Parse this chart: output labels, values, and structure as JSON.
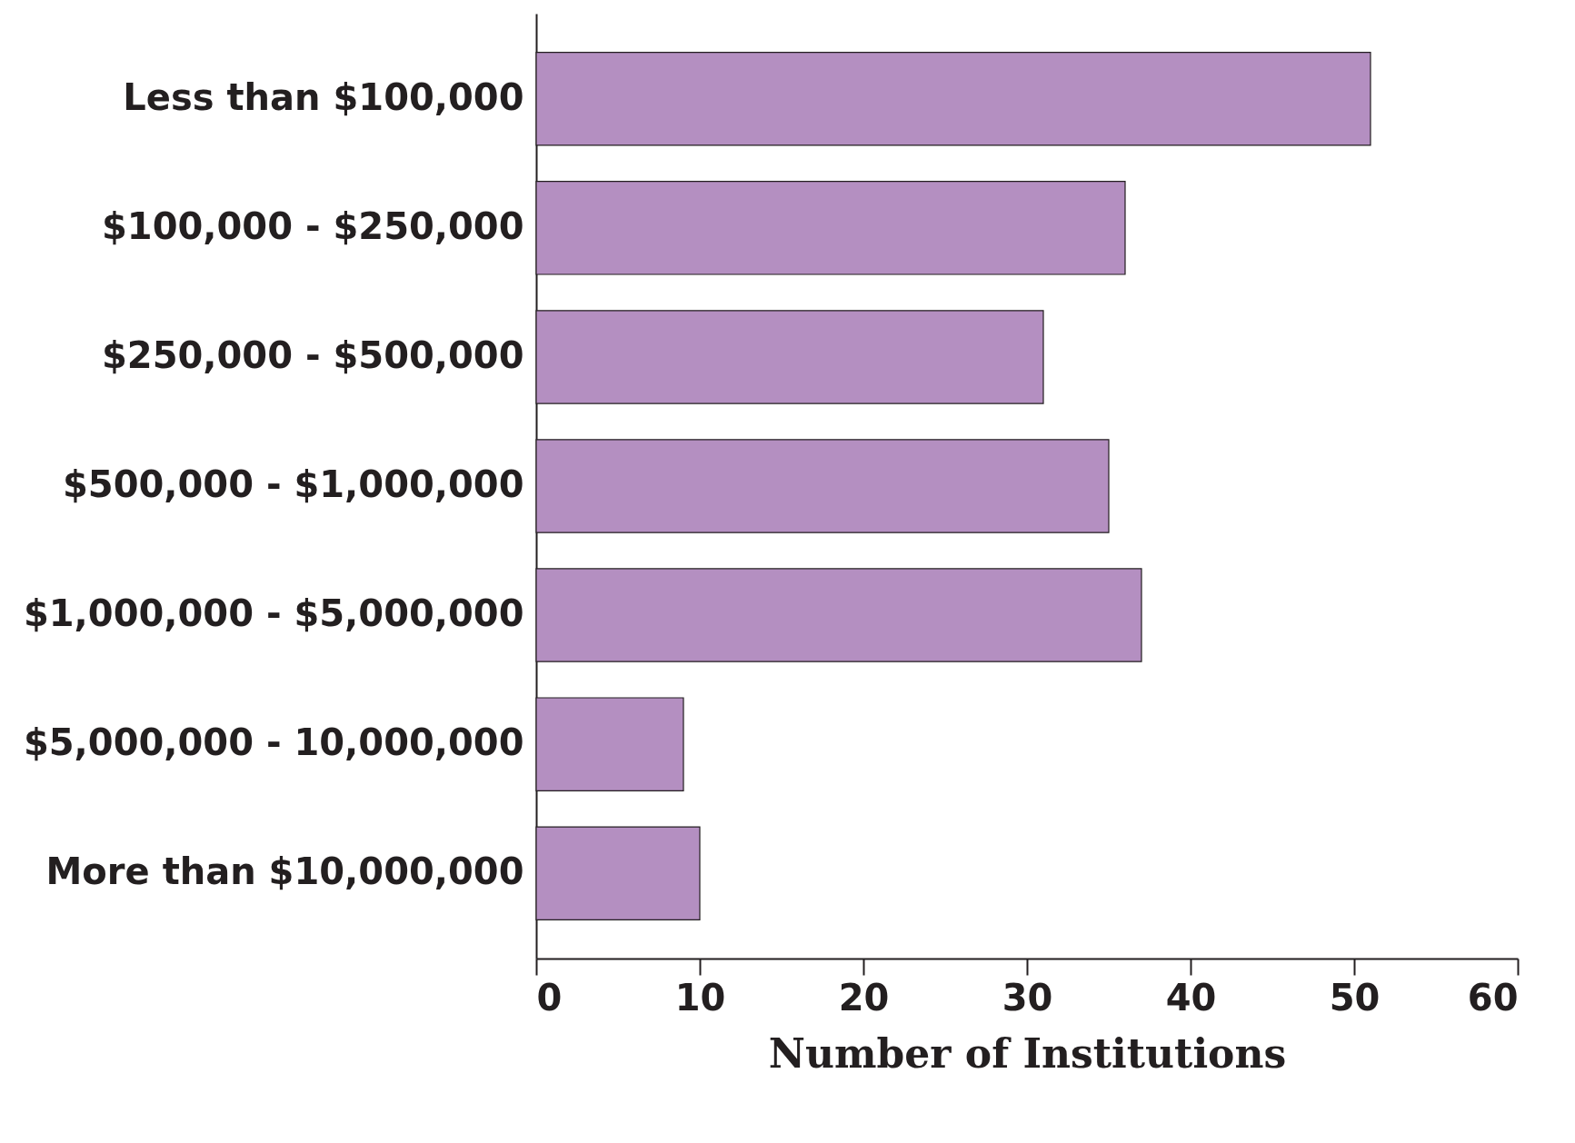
{
  "chart_data": {
    "type": "bar",
    "orientation": "horizontal",
    "xlabel": "Number of Institutions",
    "categories": [
      "Less than $100,000",
      "$100,000 - $250,000",
      "$250,000 - $500,000",
      "$500,000 - $1,000,000",
      "$1,000,000 - $5,000,000",
      "$5,000,000 - 10,000,000",
      "More than $10,000,000"
    ],
    "values": [
      51,
      36,
      31,
      35,
      37,
      9,
      10
    ],
    "color": "#b48fc1",
    "xlim": [
      0,
      60
    ],
    "xticks": [
      0,
      10,
      20,
      30,
      40,
      50,
      60
    ],
    "grid": false
  }
}
